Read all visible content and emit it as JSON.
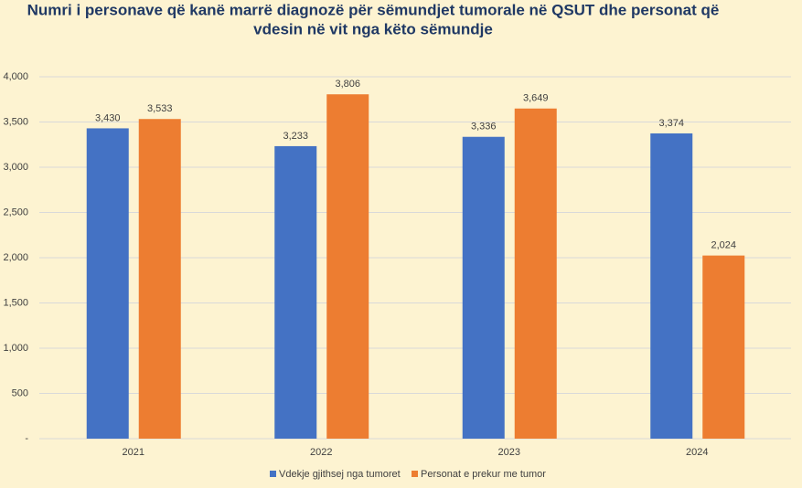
{
  "chart_data": {
    "type": "bar",
    "title": [
      "Numri i personave që kanë marrë diagnozë për sëmundjet tumorale në QSUT dhe personat që",
      "vdesin në vit nga këto sëmundje"
    ],
    "categories": [
      "2021",
      "2022",
      "2023",
      "2024"
    ],
    "series": [
      {
        "name": "Vdekje gjithsej nga tumoret",
        "color": "#4472c4",
        "values": [
          3430,
          3233,
          3336,
          3374
        ],
        "value_labels": [
          "3,430",
          "3,233",
          "3,336",
          "3,374"
        ]
      },
      {
        "name": "Personat e prekur me tumor",
        "color": "#ed7d31",
        "values": [
          3533,
          3806,
          3649,
          2024
        ],
        "value_labels": [
          "3,533",
          "3,806",
          "3,649",
          "2,024"
        ]
      }
    ],
    "ylim": [
      0,
      4000
    ],
    "yticks": [
      {
        "value": 0,
        "label": "-"
      },
      500,
      {
        "value": 1000,
        "label": "1,000"
      },
      {
        "value": 1500,
        "label": "1,500"
      },
      {
        "value": 2000,
        "label": "2,000"
      },
      {
        "value": 2500,
        "label": "2,500"
      },
      {
        "value": 3000,
        "label": "3,000"
      },
      {
        "value": 3500,
        "label": "3,500"
      },
      {
        "value": 4000,
        "label": "4,000"
      }
    ],
    "grid": true,
    "legend": "bottom"
  }
}
